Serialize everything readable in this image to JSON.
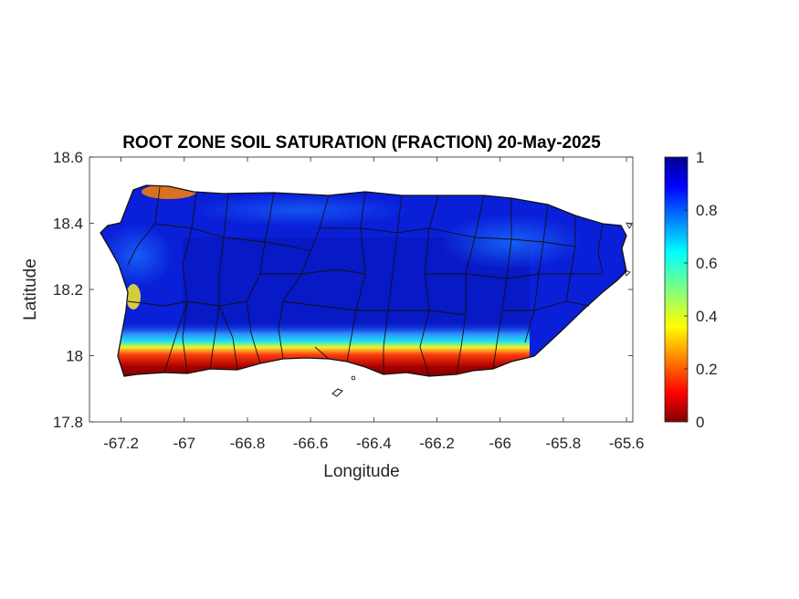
{
  "chart_data": {
    "type": "heatmap",
    "title": "ROOT ZONE SOIL SATURATION (FRACTION) 20-May-2025",
    "xlabel": "Longitude",
    "ylabel": "Latitude",
    "xlim": [
      -67.3,
      -65.58
    ],
    "ylim": [
      17.8,
      18.6
    ],
    "x_ticks": [
      -67.2,
      -67,
      -66.8,
      -66.6,
      -66.4,
      -66.2,
      -66,
      -65.8,
      -65.6
    ],
    "x_tick_labels": [
      "-67.2",
      "-67",
      "-66.8",
      "-66.6",
      "-66.4",
      "-66.2",
      "-66",
      "-65.8",
      "-65.6"
    ],
    "y_ticks": [
      17.8,
      18,
      18.2,
      18.4,
      18.6
    ],
    "y_tick_labels": [
      "17.8",
      "18",
      "18.2",
      "18.4",
      "18.6"
    ],
    "colorbar": {
      "colormap": "jet",
      "range": [
        0,
        1
      ],
      "ticks": [
        0,
        0.2,
        0.4,
        0.6,
        0.8,
        1
      ],
      "tick_labels": [
        "0",
        "0.2",
        "0.4",
        "0.6",
        "0.8",
        "1"
      ]
    },
    "grid": false
  }
}
